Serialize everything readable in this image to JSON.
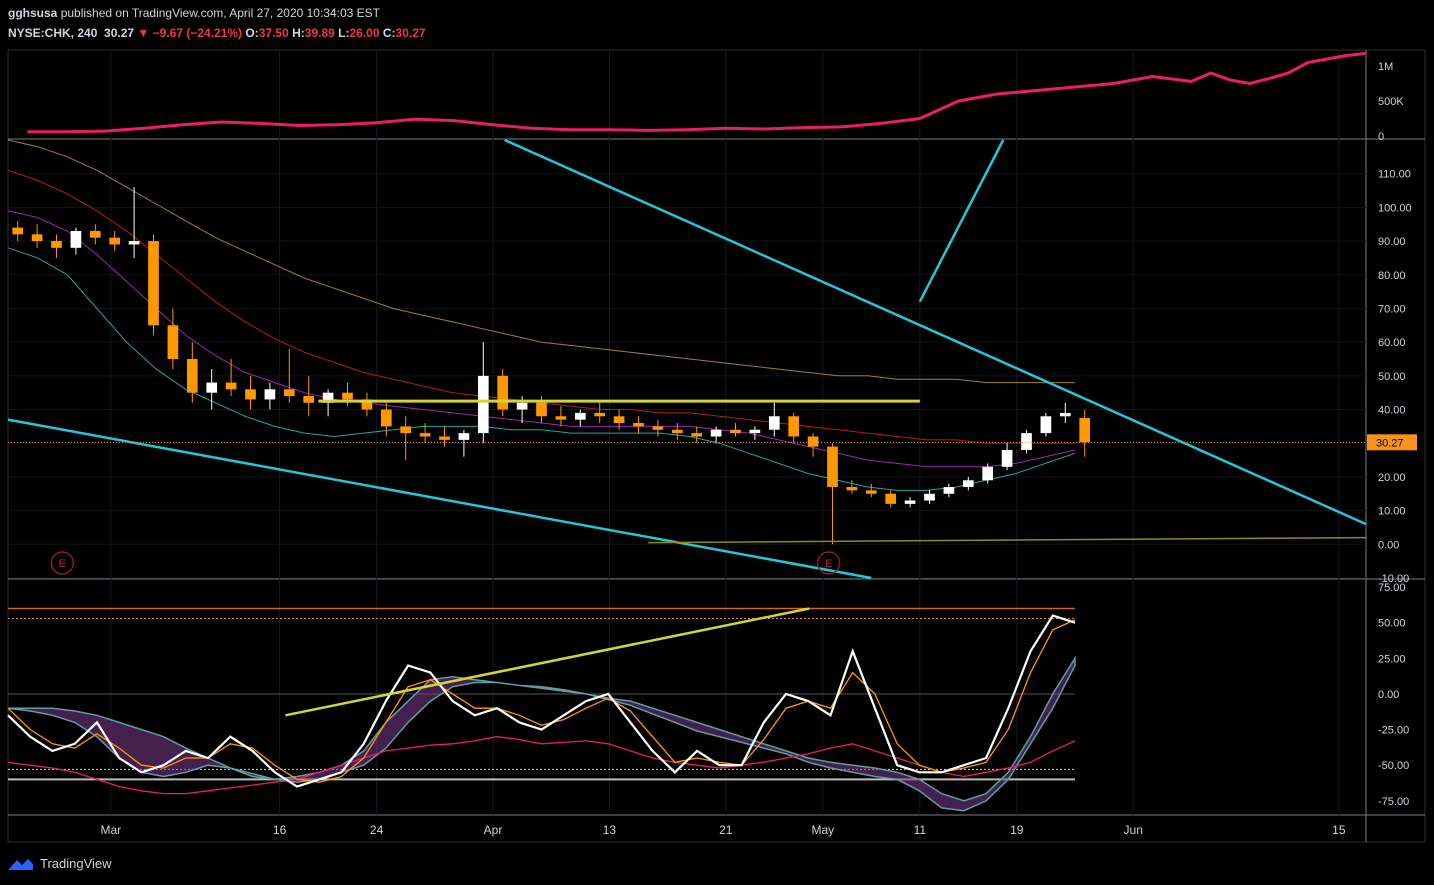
{
  "header": {
    "publisher": "gghsusa",
    "published_text": "published on TradingView.com, April 27, 2020 10:34:03 EST",
    "symbol": "NYSE:CHK, 240",
    "last": "30.27",
    "change": "−9.67 (−24.21%)",
    "o_label": "O:",
    "o": "37.50",
    "h_label": "H:",
    "h": "39.89",
    "l_label": "L:",
    "l": "26.00",
    "c_label": "C:",
    "c": "30.27"
  },
  "brand": {
    "name": "TradingView"
  },
  "colors": {
    "background": "#000000",
    "up": "#ffffff",
    "down": "#ff9800",
    "volume": "#e91e63",
    "trend": "#26c6da",
    "resistance": "#d4d432",
    "ma_teal": "#26a69a",
    "ma_purple": "#9c27b0",
    "ma_red": "#b71c1c",
    "ma_tan": "#a08030",
    "price_tag": "#f7931a",
    "osc_fast": "#ffffff",
    "osc_slow": "#ff9800",
    "osc_signal": "#e91e63",
    "osc_band_up": "#5f9ea0",
    "osc_band_down": "#7b3a8f"
  },
  "chart_data": [
    {
      "type": "line",
      "name": "volume-pane",
      "yticks": [
        "1M",
        "500K",
        "0"
      ],
      "ylim": [
        0,
        1200000
      ],
      "x": [
        1,
        3,
        5,
        7,
        9,
        11,
        13,
        15,
        17,
        19,
        21,
        23,
        25,
        27,
        29,
        31,
        33,
        35,
        37,
        39,
        41,
        43,
        45,
        47,
        49,
        51,
        53,
        55,
        57,
        59,
        61,
        62,
        63,
        64,
        65,
        66,
        67,
        68,
        69,
        70
      ],
      "values": [
        60000,
        60000,
        70000,
        110000,
        160000,
        200000,
        180000,
        150000,
        160000,
        190000,
        240000,
        220000,
        160000,
        110000,
        90000,
        90000,
        80000,
        90000,
        110000,
        100000,
        120000,
        130000,
        180000,
        250000,
        500000,
        600000,
        650000,
        700000,
        750000,
        850000,
        780000,
        900000,
        800000,
        750000,
        820000,
        900000,
        1050000,
        1100000,
        1150000,
        1180000
      ]
    },
    {
      "type": "line",
      "name": "price-pane",
      "yticks": [
        "110.00",
        "100.00",
        "90.00",
        "80.00",
        "70.00",
        "60.00",
        "50.00",
        "40.00",
        "30.00",
        "20.00",
        "10.00",
        "0.00",
        "-10.00"
      ],
      "ylim": [
        -10,
        120
      ],
      "last_price": "30.27",
      "x_ticks": [
        "Mar",
        "16",
        "24",
        "Apr",
        "13",
        "21",
        "May",
        "11",
        "19",
        "Jun",
        "15"
      ],
      "earnings_markers": [
        "E",
        "E"
      ],
      "candles": [
        [
          94,
          96,
          90,
          92
        ],
        [
          92,
          95,
          88,
          90
        ],
        [
          90,
          92,
          85,
          88
        ],
        [
          88,
          94,
          86,
          93
        ],
        [
          93,
          95,
          89,
          91
        ],
        [
          91,
          93,
          87,
          89
        ],
        [
          89,
          106,
          85,
          90
        ],
        [
          90,
          92,
          62,
          65
        ],
        [
          65,
          70,
          52,
          55
        ],
        [
          55,
          60,
          42,
          45
        ],
        [
          45,
          52,
          40,
          48
        ],
        [
          48,
          55,
          44,
          46
        ],
        [
          46,
          50,
          40,
          43
        ],
        [
          43,
          48,
          40,
          46
        ],
        [
          46,
          58,
          42,
          44
        ],
        [
          44,
          50,
          38,
          42
        ],
        [
          42,
          46,
          38,
          45
        ],
        [
          45,
          48,
          41,
          43
        ],
        [
          43,
          45,
          38,
          40
        ],
        [
          40,
          42,
          32,
          35
        ],
        [
          35,
          38,
          25,
          33
        ],
        [
          33,
          36,
          30,
          32
        ],
        [
          32,
          35,
          29,
          31
        ],
        [
          31,
          34,
          26,
          33
        ],
        [
          33,
          60,
          30,
          50
        ],
        [
          50,
          52,
          38,
          40
        ],
        [
          40,
          44,
          36,
          42
        ],
        [
          42,
          44,
          36,
          38
        ],
        [
          38,
          41,
          35,
          37
        ],
        [
          37,
          40,
          35,
          39
        ],
        [
          39,
          42,
          36,
          38
        ],
        [
          38,
          40,
          34,
          36
        ],
        [
          36,
          38,
          33,
          35
        ],
        [
          35,
          37,
          32,
          34
        ],
        [
          34,
          36,
          31,
          33
        ],
        [
          33,
          35,
          30,
          32
        ],
        [
          32,
          35,
          30,
          34
        ],
        [
          34,
          36,
          32,
          33
        ],
        [
          33,
          35,
          31,
          34
        ],
        [
          34,
          42,
          32,
          38
        ],
        [
          38,
          39,
          30,
          32
        ],
        [
          32,
          33,
          26,
          29
        ],
        [
          29,
          30,
          0,
          17
        ],
        [
          17,
          19,
          15,
          16
        ],
        [
          16,
          18,
          14,
          15
        ],
        [
          15,
          16,
          11,
          12
        ],
        [
          12,
          14,
          11,
          13
        ],
        [
          13,
          16,
          12,
          15
        ],
        [
          15,
          18,
          14,
          17
        ],
        [
          17,
          20,
          16,
          19
        ],
        [
          19,
          24,
          18,
          23
        ],
        [
          23,
          30,
          22,
          28
        ],
        [
          28,
          34,
          27,
          33
        ],
        [
          33,
          39,
          32,
          38
        ],
        [
          38,
          42,
          36,
          39
        ],
        [
          37.5,
          39.89,
          26,
          30.27
        ]
      ],
      "series": [
        {
          "name": "",
          "color_key": "ma_teal",
          "values": [
            88,
            85,
            80,
            70,
            60,
            52,
            46,
            42,
            38,
            35,
            33,
            32,
            33,
            34,
            35,
            35,
            35,
            34,
            34,
            33,
            33,
            33,
            33,
            32,
            30,
            27,
            24,
            21,
            19,
            17,
            16,
            16,
            17,
            19,
            21,
            24,
            27
          ]
        },
        {
          "name": "",
          "color_key": "ma_purple",
          "values": [
            99,
            97,
            93,
            86,
            78,
            70,
            62,
            56,
            51,
            48,
            45,
            43,
            42,
            41,
            40,
            39,
            38,
            37,
            36,
            35,
            35,
            35,
            35,
            35,
            34,
            33,
            31,
            29,
            27,
            25,
            24,
            23,
            23,
            23,
            24,
            26,
            28
          ]
        },
        {
          "name": "",
          "color_key": "ma_red",
          "values": [
            111,
            108,
            104,
            99,
            93,
            86,
            79,
            72,
            66,
            61,
            57,
            54,
            51,
            49,
            47,
            45,
            44,
            43,
            42,
            41,
            40,
            40,
            39,
            39,
            38,
            37,
            36,
            35,
            34,
            33,
            32,
            31,
            31,
            30,
            30,
            30,
            30
          ]
        },
        {
          "name": "",
          "color_key": "ma_tan",
          "values": [
            120,
            118,
            115,
            111,
            106,
            101,
            96,
            91,
            87,
            83,
            79,
            76,
            73,
            70,
            68,
            66,
            64,
            62,
            60,
            59,
            58,
            57,
            56,
            55,
            54,
            53,
            52,
            51,
            50,
            50,
            49,
            49,
            49,
            48,
            48,
            48,
            48
          ]
        }
      ],
      "trendlines": [
        "resistance 42.5",
        "descending support",
        "descending upper channel",
        "ascending line",
        "horizontal base 0.5"
      ]
    },
    {
      "type": "line",
      "name": "oscillator-pane",
      "yticks": [
        "75.00",
        "50.00",
        "25.00",
        "0.00",
        "-25.00",
        "-50.00",
        "-75.00"
      ],
      "ylim": [
        -85,
        80
      ],
      "levels": [
        60,
        53,
        0,
        -53,
        -60
      ],
      "series": [
        {
          "name": "",
          "color_key": "osc_fast",
          "values": [
            -15,
            -30,
            -40,
            -35,
            -20,
            -45,
            -55,
            -50,
            -40,
            -45,
            -30,
            -40,
            -55,
            -65,
            -60,
            -55,
            -35,
            -5,
            20,
            15,
            -5,
            -15,
            -10,
            -20,
            -25,
            -15,
            -5,
            0,
            -20,
            -40,
            -55,
            -40,
            -50,
            -50,
            -20,
            0,
            -5,
            -15,
            30,
            -10,
            -50,
            -55,
            -55,
            -50,
            -45,
            -10,
            30,
            55,
            50
          ]
        },
        {
          "name": "",
          "color_key": "osc_slow",
          "values": [
            -10,
            -25,
            -35,
            -38,
            -28,
            -38,
            -50,
            -52,
            -45,
            -45,
            -35,
            -38,
            -50,
            -60,
            -62,
            -58,
            -45,
            -20,
            5,
            10,
            0,
            -10,
            -10,
            -15,
            -22,
            -18,
            -10,
            -3,
            -12,
            -30,
            -48,
            -45,
            -48,
            -50,
            -32,
            -10,
            -5,
            -10,
            15,
            0,
            -35,
            -50,
            -55,
            -52,
            -48,
            -25,
            15,
            45,
            52
          ]
        },
        {
          "name": "",
          "color_key": "osc_signal",
          "values": [
            -48,
            -50,
            -52,
            -55,
            -60,
            -65,
            -68,
            -70,
            -70,
            -68,
            -66,
            -64,
            -62,
            -60,
            -55,
            -50,
            -45,
            -40,
            -38,
            -36,
            -35,
            -33,
            -30,
            -32,
            -35,
            -34,
            -33,
            -35,
            -40,
            -45,
            -48,
            -50,
            -52,
            -50,
            -48,
            -45,
            -42,
            -38,
            -35,
            -40,
            -45,
            -50,
            -55,
            -58,
            -55,
            -52,
            -48,
            -40,
            -33
          ]
        },
        {
          "name": "",
          "color_key": "osc_band_up",
          "values": [
            -10,
            -10,
            -10,
            -12,
            -15,
            -20,
            -25,
            -30,
            -38,
            -45,
            -52,
            -58,
            -60,
            -58,
            -55,
            -50,
            -40,
            -20,
            -5,
            10,
            12,
            10,
            8,
            6,
            5,
            3,
            0,
            -3,
            -5,
            -10,
            -15,
            -20,
            -25,
            -30,
            -35,
            -40,
            -45,
            -48,
            -50,
            -52,
            -55,
            -60,
            -70,
            -75,
            -70,
            -55,
            -30,
            0,
            25
          ]
        },
        {
          "name": "",
          "color_key": "osc_band_down",
          "values": [
            -10,
            -12,
            -15,
            -20,
            -30,
            -45,
            -55,
            -58,
            -55,
            -50,
            -52,
            -56,
            -60,
            -62,
            -60,
            -55,
            -50,
            -38,
            -20,
            -5,
            5,
            8,
            8,
            6,
            4,
            2,
            0,
            -4,
            -8,
            -14,
            -20,
            -26,
            -30,
            -34,
            -38,
            -42,
            -48,
            -52,
            -55,
            -58,
            -60,
            -68,
            -80,
            -82,
            -75,
            -60,
            -35,
            -10,
            20
          ]
        }
      ],
      "trendline": "rising divergence line"
    }
  ]
}
